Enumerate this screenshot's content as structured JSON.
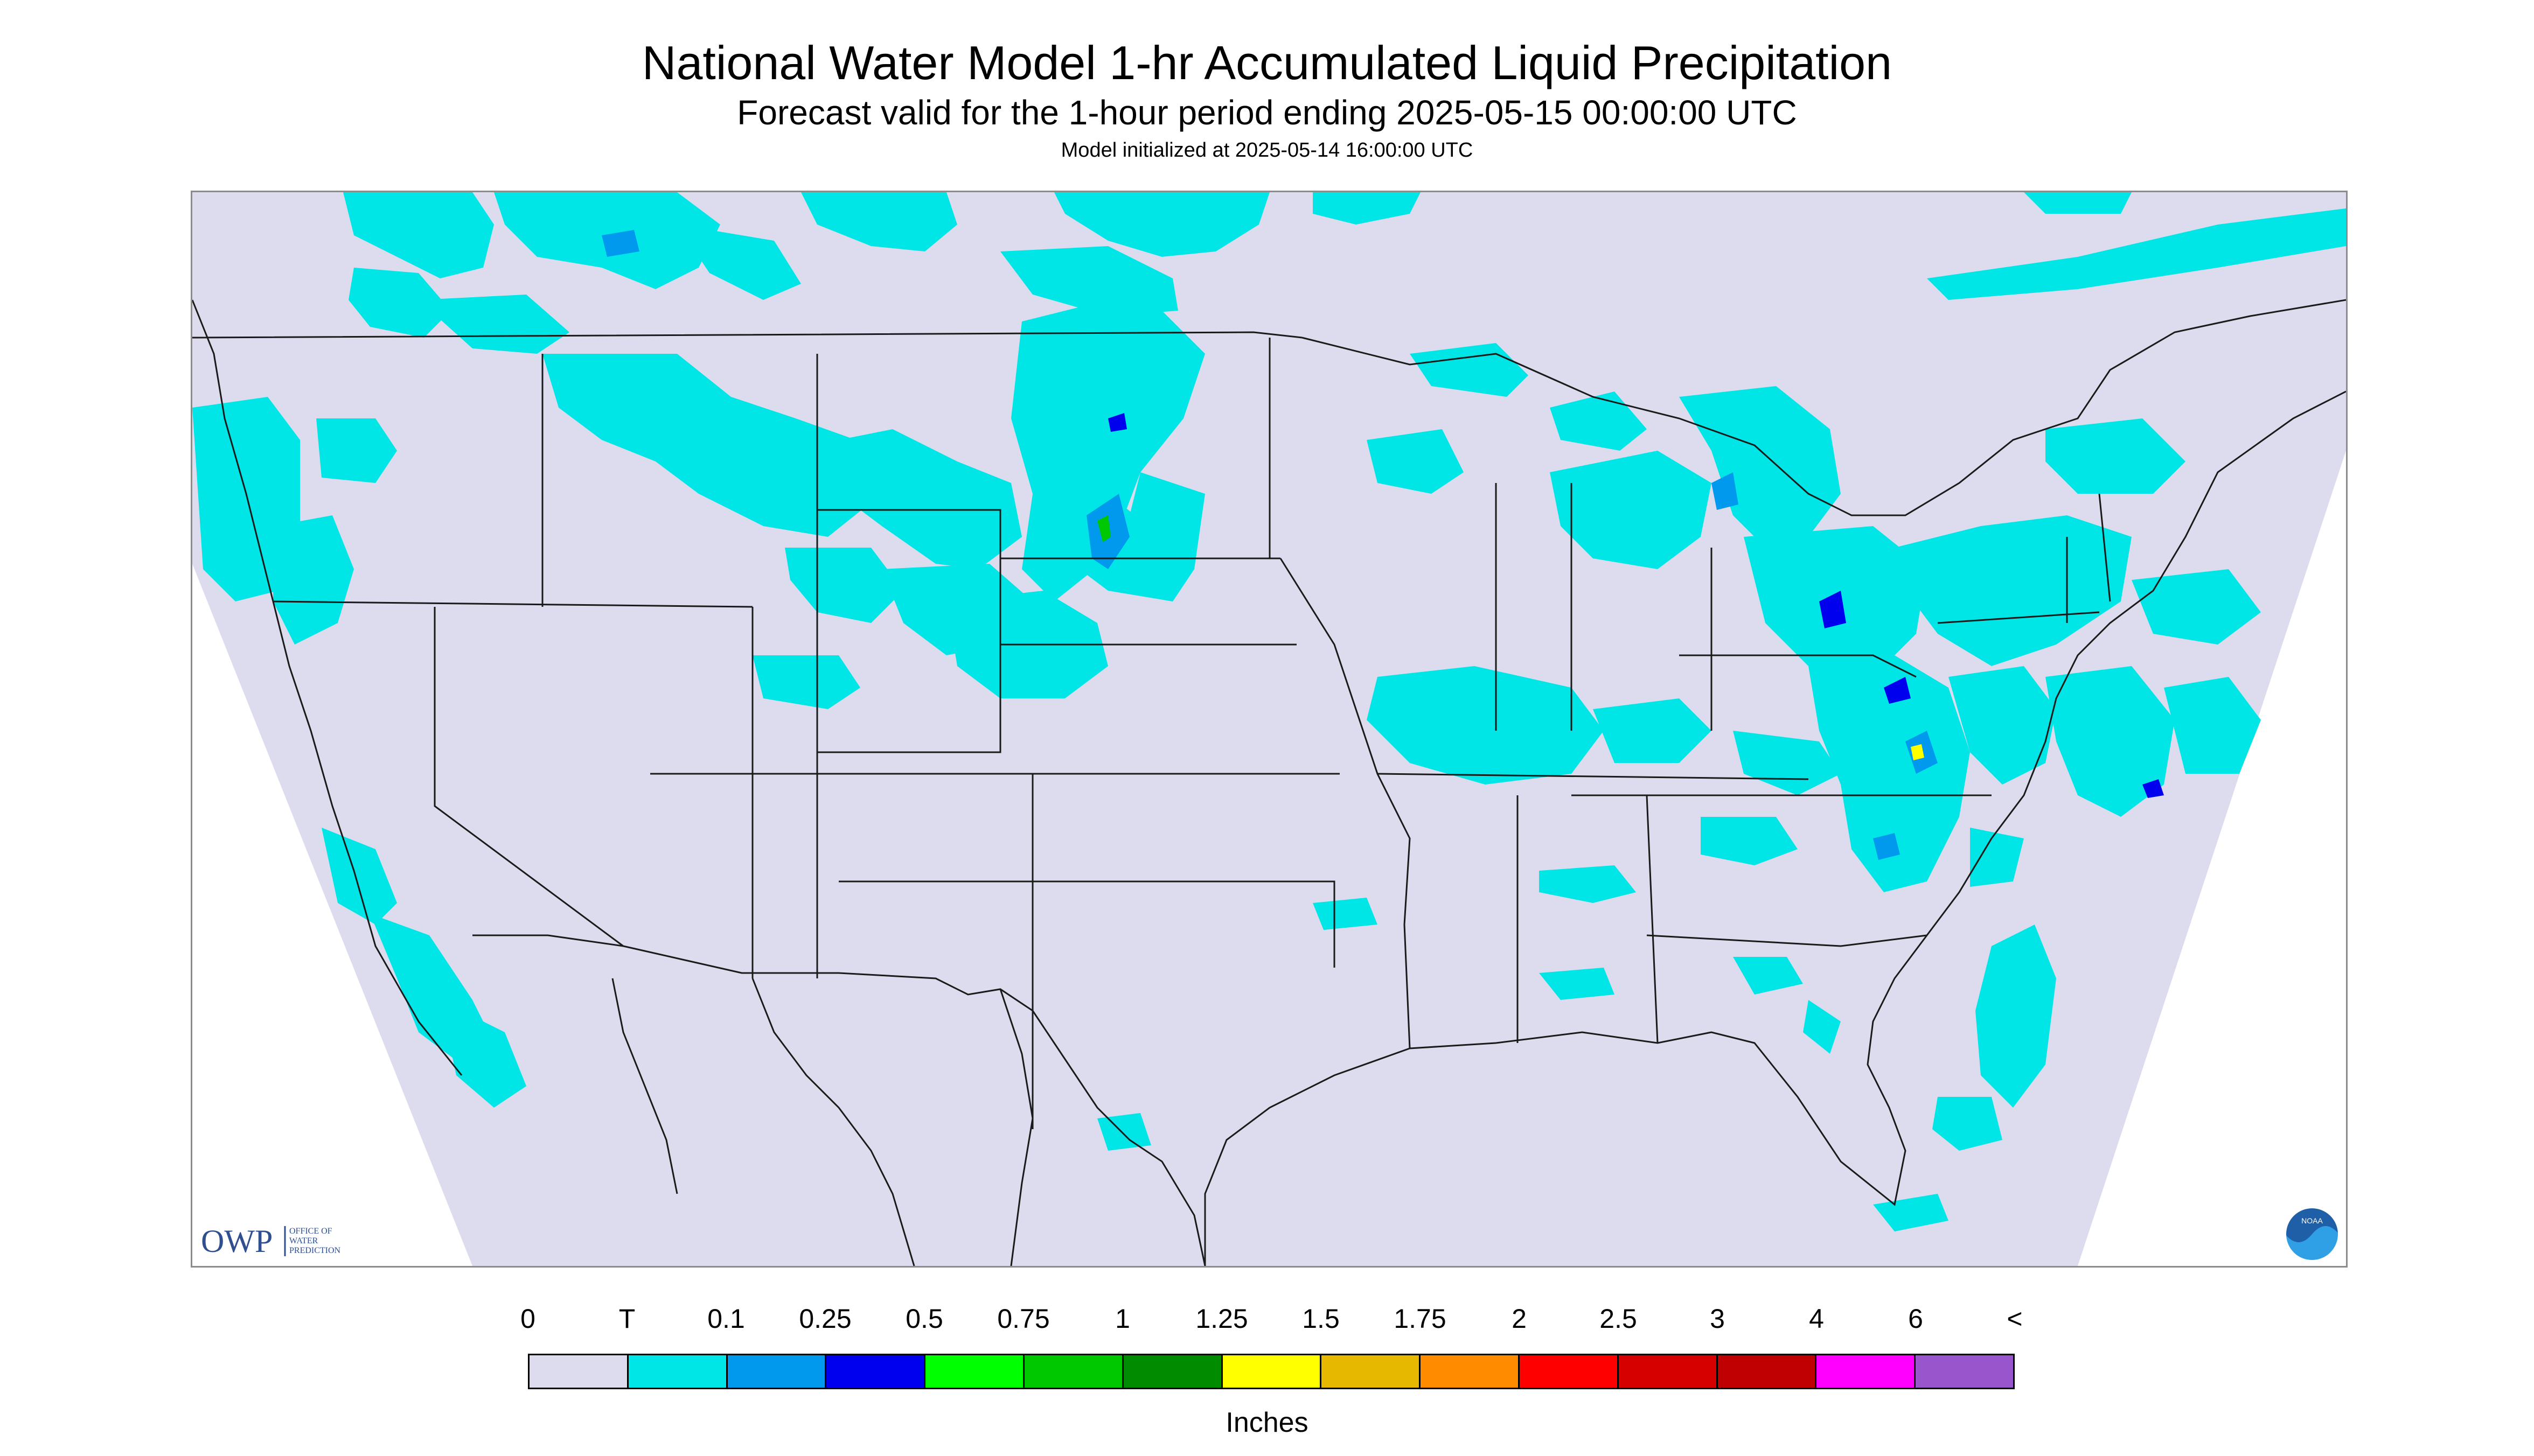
{
  "header": {
    "title": "National Water Model 1-hr Accumulated Liquid Precipitation",
    "subtitle": "Forecast valid for the 1-hour period ending 2025-05-15 00:00:00 UTC",
    "init": "Model initialized at 2025-05-14 16:00:00 UTC"
  },
  "map": {
    "background_color": "#dcdcee",
    "outside_color": "#ffffff",
    "border_color": "#1a1a1a",
    "logos": {
      "owp_text": "OWP",
      "owp_sub": [
        "OFFICE OF",
        "WATER",
        "PREDICTION"
      ],
      "noaa_text": "NOAA"
    }
  },
  "legend": {
    "labels": [
      "0",
      "T",
      "0.1",
      "0.25",
      "0.5",
      "0.75",
      "1",
      "1.25",
      "1.5",
      "1.75",
      "2",
      "2.5",
      "3",
      "4",
      "6",
      "<"
    ],
    "colors": [
      "#dcdcee",
      "#00e6e6",
      "#0099ee",
      "#0000ee",
      "#00ff00",
      "#00c800",
      "#008c00",
      "#ffff00",
      "#e6b800",
      "#ff8c00",
      "#ff0000",
      "#d70000",
      "#c00000",
      "#ff00ff",
      "#9955cc"
    ],
    "units": "Inches"
  }
}
